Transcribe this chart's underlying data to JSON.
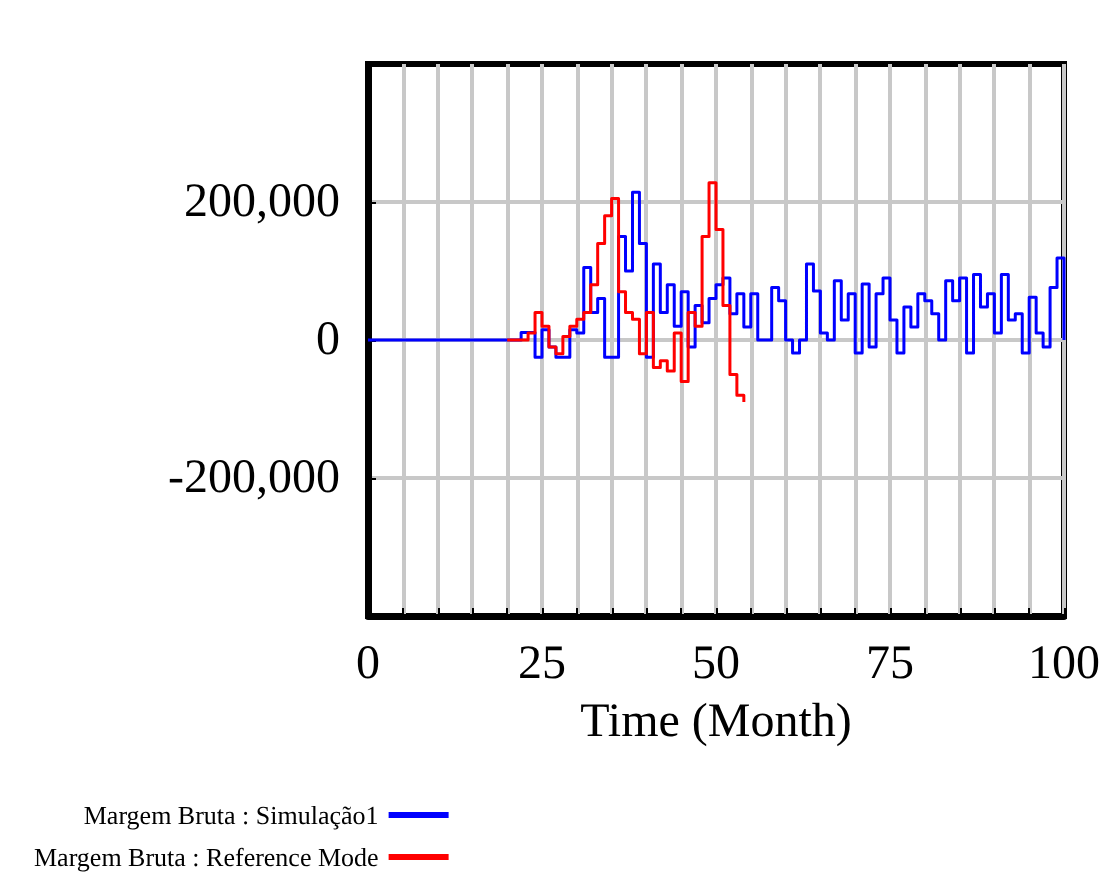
{
  "chart_data": {
    "type": "step",
    "xlabel": "Time (Month)",
    "xlim": [
      0,
      100
    ],
    "xticks": [
      0,
      {
        "value": 5,
        "label": null
      },
      {
        "value": 10,
        "label": null
      },
      {
        "value": 15,
        "label": null
      },
      {
        "value": 20,
        "label": null
      },
      25,
      {
        "value": 30,
        "label": null
      },
      {
        "value": 35,
        "label": null
      },
      {
        "value": 40,
        "label": null
      },
      {
        "value": 45,
        "label": null
      },
      50,
      {
        "value": 55,
        "label": null
      },
      {
        "value": 60,
        "label": null
      },
      {
        "value": 65,
        "label": null
      },
      {
        "value": 70,
        "label": null
      },
      75,
      {
        "value": 80,
        "label": null
      },
      {
        "value": 85,
        "label": null
      },
      {
        "value": 90,
        "label": null
      },
      {
        "value": 95,
        "label": null
      },
      100
    ],
    "ylim": [
      -400000,
      400000
    ],
    "yticks": [
      {
        "value": -200000,
        "label": "-200,000"
      },
      0,
      {
        "value": 200000,
        "label": "200,000"
      }
    ],
    "grid": true,
    "legend": "bottom left",
    "marker": "none",
    "line_style": "solid",
    "series": [
      {
        "name": "Margem Bruta : Simulação1",
        "color": "#0000ff",
        "x": [
          0,
          1,
          2,
          3,
          4,
          5,
          6,
          7,
          8,
          9,
          10,
          11,
          12,
          13,
          14,
          15,
          16,
          17,
          18,
          19,
          20,
          21,
          22,
          23,
          24,
          25,
          26,
          27,
          28,
          29,
          30,
          31,
          32,
          33,
          34,
          35,
          36,
          37,
          38,
          39,
          40,
          41,
          42,
          43,
          44,
          45,
          46,
          47,
          48,
          49,
          50,
          51,
          52,
          53,
          54,
          55,
          56,
          57,
          58,
          59,
          60,
          61,
          62,
          63,
          64,
          65,
          66,
          67,
          68,
          69,
          70,
          71,
          72,
          73,
          74,
          75,
          76,
          77,
          78,
          79,
          80,
          81,
          82,
          83,
          84,
          85,
          86,
          87,
          88,
          89,
          90,
          91,
          92,
          93,
          94,
          95,
          96,
          97,
          98,
          99,
          100
        ],
        "values": [
          0,
          0,
          0,
          0,
          0,
          0,
          0,
          0,
          0,
          0,
          0,
          0,
          0,
          0,
          0,
          0,
          0,
          0,
          0,
          0,
          0,
          0,
          11000,
          11000,
          -25000,
          15000,
          -10000,
          -25000,
          -25000,
          15000,
          10000,
          105000,
          40000,
          60000,
          -25000,
          -25000,
          150000,
          100000,
          214000,
          140000,
          -25000,
          110000,
          40000,
          80000,
          20000,
          70000,
          -10000,
          50000,
          25000,
          60000,
          80000,
          90000,
          38000,
          67000,
          19000,
          67000,
          0,
          0,
          76000,
          57000,
          0,
          -19000,
          0,
          110000,
          71000,
          10000,
          0,
          86000,
          29000,
          67000,
          -19000,
          81000,
          -10000,
          67000,
          90000,
          29000,
          -19000,
          48000,
          19000,
          67000,
          57000,
          38000,
          0,
          86000,
          57000,
          90000,
          -19000,
          95000,
          48000,
          67000,
          10000,
          95000,
          29000,
          38000,
          -19000,
          62000,
          10000,
          -10000,
          76000,
          119000,
          0
        ]
      },
      {
        "name": "Margem Bruta : Reference Mode",
        "color": "#ff0000",
        "x": [
          20,
          21,
          22,
          23,
          24,
          25,
          26,
          27,
          28,
          29,
          30,
          31,
          32,
          33,
          34,
          35,
          36,
          37,
          38,
          39,
          40,
          41,
          42,
          43,
          44,
          45,
          46,
          47,
          48,
          49,
          50,
          51,
          52,
          53,
          54
        ],
        "values": [
          0,
          0,
          0,
          10000,
          40000,
          20000,
          -10000,
          -20000,
          5000,
          20000,
          30000,
          40000,
          80000,
          140000,
          180000,
          205000,
          70000,
          40000,
          30000,
          -20000,
          40000,
          -40000,
          -30000,
          -45000,
          10000,
          -60000,
          40000,
          20000,
          150000,
          228000,
          160000,
          50000,
          -50000,
          -80000,
          -90000
        ]
      }
    ]
  }
}
